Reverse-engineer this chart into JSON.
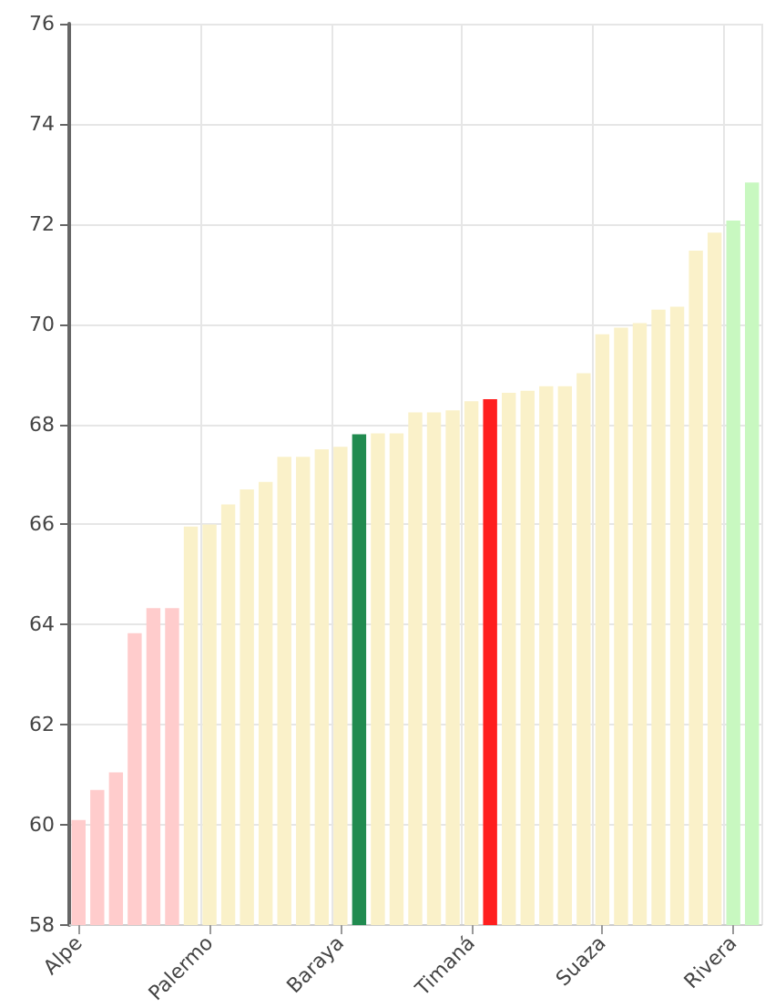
{
  "chart_data": {
    "type": "bar",
    "categories": [
      "Alpe",
      null,
      null,
      null,
      null,
      null,
      null,
      "Palermo",
      null,
      null,
      null,
      null,
      null,
      null,
      "Baraya",
      null,
      null,
      null,
      null,
      null,
      null,
      "Timaná",
      null,
      null,
      null,
      null,
      null,
      null,
      "Suaza",
      null,
      null,
      null,
      null,
      null,
      null,
      "Rivera",
      null
    ],
    "values": [
      60.1,
      60.7,
      61.05,
      63.83,
      64.33,
      64.33,
      65.96,
      66.0,
      66.4,
      66.7,
      66.85,
      67.35,
      67.35,
      67.5,
      67.55,
      67.8,
      67.82,
      67.82,
      68.24,
      68.24,
      68.28,
      68.46,
      68.5,
      68.63,
      68.67,
      68.76,
      68.76,
      69.02,
      69.8,
      69.93,
      70.02,
      70.29,
      70.35,
      71.47,
      71.83,
      72.07,
      72.83
    ],
    "colors": [
      "#ffcccc",
      "#ffcccc",
      "#ffcccc",
      "#ffcccc",
      "#ffcccc",
      "#ffcccc",
      "#faf1c9",
      "#faf1c9",
      "#faf1c9",
      "#faf1c9",
      "#faf1c9",
      "#faf1c9",
      "#faf1c9",
      "#faf1c9",
      "#faf1c9",
      "#218b50",
      "#faf1c9",
      "#faf1c9",
      "#faf1c9",
      "#faf1c9",
      "#faf1c9",
      "#faf1c9",
      "#ff1e1e",
      "#faf1c9",
      "#faf1c9",
      "#faf1c9",
      "#faf1c9",
      "#faf1c9",
      "#faf1c9",
      "#faf1c9",
      "#faf1c9",
      "#faf1c9",
      "#faf1c9",
      "#faf1c9",
      "#faf1c9",
      "#c8f8c0",
      "#c8f8c0"
    ],
    "ylim": [
      58,
      76
    ],
    "yticks": [
      58,
      60,
      62,
      64,
      66,
      68,
      70,
      72,
      74,
      76
    ],
    "grid": true
  }
}
